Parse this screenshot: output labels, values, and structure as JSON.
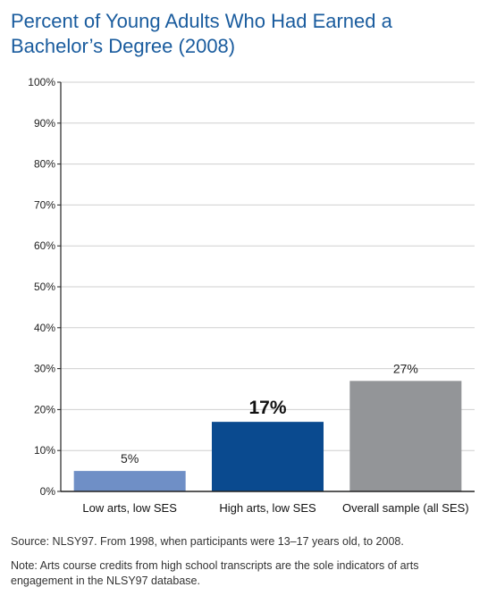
{
  "chart_data": {
    "type": "bar",
    "title": "Percent of Young Adults Who Had Earned a Bachelor’s Degree (2008)",
    "categories": [
      "Low arts, low SES",
      "High arts, low SES",
      "Overall sample (all SES)"
    ],
    "values": [
      5,
      17,
      27
    ],
    "value_labels": [
      "5%",
      "17%",
      "27%"
    ],
    "bar_colors": [
      "#6f8fc6",
      "#0a4a8f",
      "#939598"
    ],
    "emphasized_index": 1,
    "ylim": [
      0,
      100
    ],
    "yticks": [
      0,
      10,
      20,
      30,
      40,
      50,
      60,
      70,
      80,
      90,
      100
    ],
    "ytick_labels": [
      "0%",
      "10%",
      "20%",
      "30%",
      "40%",
      "50%",
      "60%",
      "70%",
      "80%",
      "90%",
      "100%"
    ],
    "grid": true,
    "xlabel": "",
    "ylabel": ""
  },
  "footer": {
    "source": "Source: NLSY97. From 1998, when participants were 13–17 years old, to 2008.",
    "note": "Note: Arts course credits from high school transcripts are the sole indicators of arts engagement in the NLSY97 database."
  },
  "colors": {
    "title": "#1a5c9e",
    "grid": "#cfcfcf",
    "axis": "#222222"
  }
}
